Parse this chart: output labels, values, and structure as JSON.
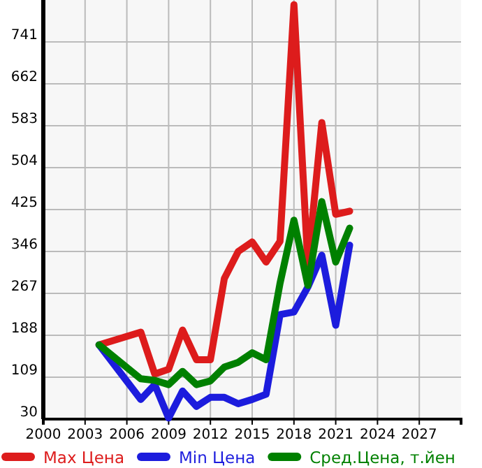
{
  "chart_data": {
    "type": "line",
    "x": [
      2004,
      2007,
      2008,
      2009,
      2010,
      2011,
      2012,
      2013,
      2014,
      2015,
      2016,
      2017,
      2018,
      2019,
      2020,
      2021,
      2022
    ],
    "series": [
      {
        "name": "Max Цена",
        "color": "#dd1c1c",
        "values": [
          170,
          194,
          115,
          124,
          198,
          142,
          142,
          295,
          346,
          364,
          326,
          365,
          811,
          321,
          589,
          416,
          422
        ]
      },
      {
        "name": "Min Цена",
        "color": "#1c1cdd",
        "values": [
          170,
          67,
          95,
          32,
          83,
          54,
          71,
          71,
          59,
          67,
          77,
          227,
          232,
          279,
          339,
          207,
          358
        ]
      },
      {
        "name": "Сред.Цена, т.йен",
        "color": "#008000",
        "values": [
          170,
          106,
          103,
          95,
          120,
          95,
          102,
          128,
          137,
          155,
          142,
          286,
          405,
          282,
          440,
          326,
          390
        ]
      }
    ],
    "xlim": [
      2000,
      2030
    ],
    "xticks": [
      2000,
      2003,
      2006,
      2009,
      2012,
      2015,
      2018,
      2021,
      2024,
      2027
    ],
    "ylim": [
      30,
      820
    ],
    "yticks": [
      30,
      109,
      188,
      267,
      346,
      425,
      504,
      583,
      662,
      741
    ],
    "grid": true,
    "legend": "bottom",
    "marker": "none",
    "line_style": "solid"
  }
}
